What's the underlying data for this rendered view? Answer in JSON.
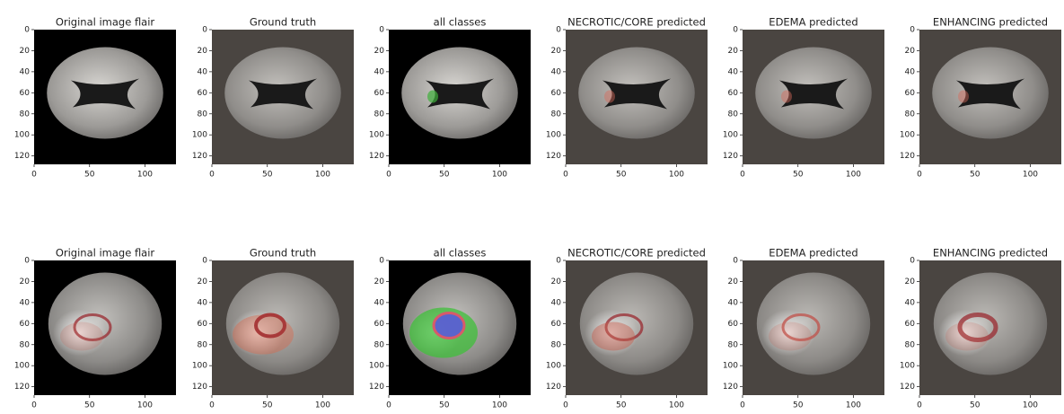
{
  "rows": [
    [
      "Original image flair",
      "Ground truth",
      "all classes",
      "NECROTIC/CORE predicted",
      "EDEMA predicted",
      "ENHANCING predicted"
    ],
    [
      "Original image flair",
      "Ground truth",
      "all classes",
      "NECROTIC/CORE predicted",
      "EDEMA predicted",
      "ENHANCING predicted"
    ]
  ],
  "xlim": [
    0,
    128
  ],
  "ylim": [
    0,
    128
  ],
  "xticks": [
    0,
    50,
    100
  ],
  "yticks": [
    0,
    20,
    40,
    60,
    80,
    100,
    120
  ]
}
